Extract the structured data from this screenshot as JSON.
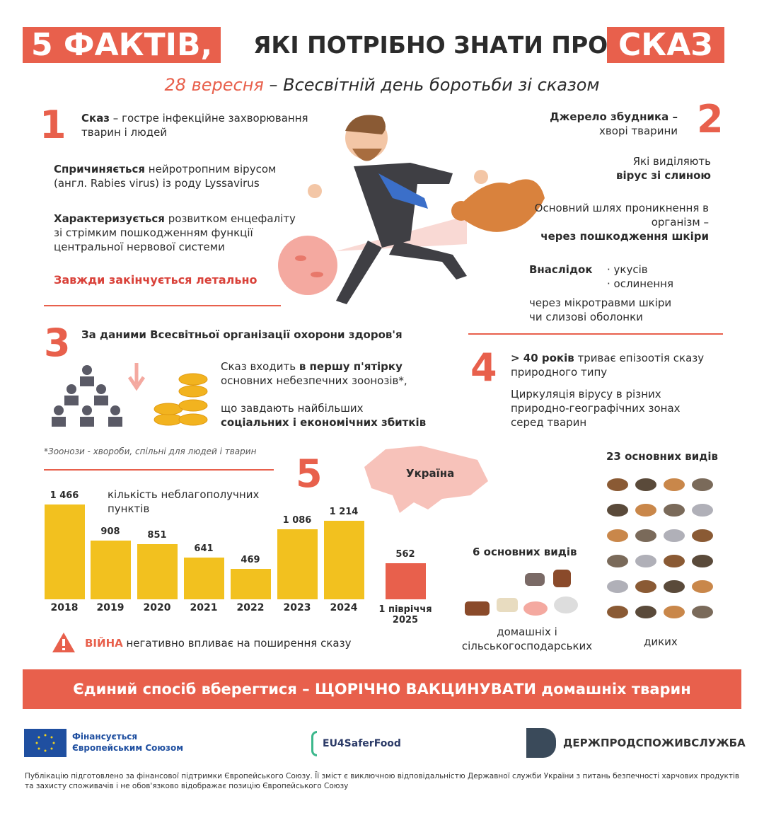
{
  "header": {
    "title_left": "5 ФАКТІВ,",
    "title_mid": "ЯКІ ПОТРІБНО ЗНАТИ ПРО",
    "title_right": "СКАЗ",
    "date": "28 вересня",
    "subtitle": " – Всесвітній день боротьби зі сказом"
  },
  "fact1": {
    "number": "1",
    "p1_bold": "Сказ",
    "p1": " – гостре інфекційне захворювання тварин і людей",
    "p2_bold": "Спричиняється",
    "p2": " нейротропним вірусом (англ. Rabies virus) із роду Lyssavirus",
    "p3_bold": "Характеризується",
    "p3": " розвитком енцефаліту зі стрімким пошкодженням функції центральної нервової системи",
    "p4": "Завжди закінчується летально"
  },
  "fact2": {
    "number": "2",
    "p1_bold": "Джерело збудника –",
    "p1": "хворі тварини",
    "p2": "Які виділяють",
    "p2_bold": "вірус зі слиною",
    "p3": "Основний шлях проникнення в організм –",
    "p3_bold": "через пошкодження шкіри",
    "p4_bold": "Внаслідок",
    "bullets": [
      "укусів",
      "ослинення"
    ],
    "p5": "через мікротравми шкіри чи слизові оболонки"
  },
  "fact3": {
    "number": "3",
    "heading": "За даними Всесвітньої організації охорони здоров'я",
    "p1": "Сказ входить ",
    "p1_bold": "в першу п'ятірку",
    "p1b": " основних небезпечних зоонозів*,",
    "p2": "що завдають найбільших",
    "p2_bold": "соціальних і економічних збитків",
    "footnote": "*Зоонози - хвороби, спільні для людей і тварин"
  },
  "fact4": {
    "number": "4",
    "p1_bold": "> 40 років",
    "p1": " триває епізоотія сказу природного типу",
    "p2": "Циркуляція вірусу в різних природно-географічних зонах серед тварин",
    "wild_heading": "23 основних видів",
    "wild_label": "диких",
    "domestic_heading": "6 основних видів",
    "domestic_label": "домашніх і сільськогосподарських"
  },
  "fact5": {
    "number": "5",
    "map_label": "Україна",
    "war_bold": "ВІЙНА",
    "war": " негативно впливає на поширення сказу"
  },
  "colors": {
    "accent": "#e8604c",
    "bar": "#f2c11f",
    "eu_blue": "#1f4fa0"
  },
  "chart_data": {
    "type": "bar",
    "title": "кількість неблагополучних пунктів",
    "categories": [
      "2018",
      "2019",
      "2020",
      "2021",
      "2022",
      "2023",
      "2024",
      "1 півріччя 2025"
    ],
    "values": [
      1466,
      908,
      851,
      641,
      469,
      1086,
      1214,
      562
    ],
    "value_labels": [
      "1 466",
      "908",
      "851",
      "641",
      "469",
      "1 086",
      "1 214",
      "562"
    ],
    "highlight_last": true
  },
  "banner": "Єдиний спосіб вберегтися – ЩОРІЧНО ВАКЦИНУВАТИ домашніх тварин",
  "footer": {
    "eu": "Фінансується Європейським Союзом",
    "eu4": "EU4SaferFood",
    "dpss": "ДЕРЖПРОДСПОЖИВСЛУЖБА",
    "disclaimer": "Публікацію підготовлено за фінансової підтримки Європейського Союзу. Її зміст є виключною відповідальністю Державної служби України з питань безпечності харчових продуктів та захисту споживачів і не обов'язково відображає позицію Європейського Союзу"
  }
}
